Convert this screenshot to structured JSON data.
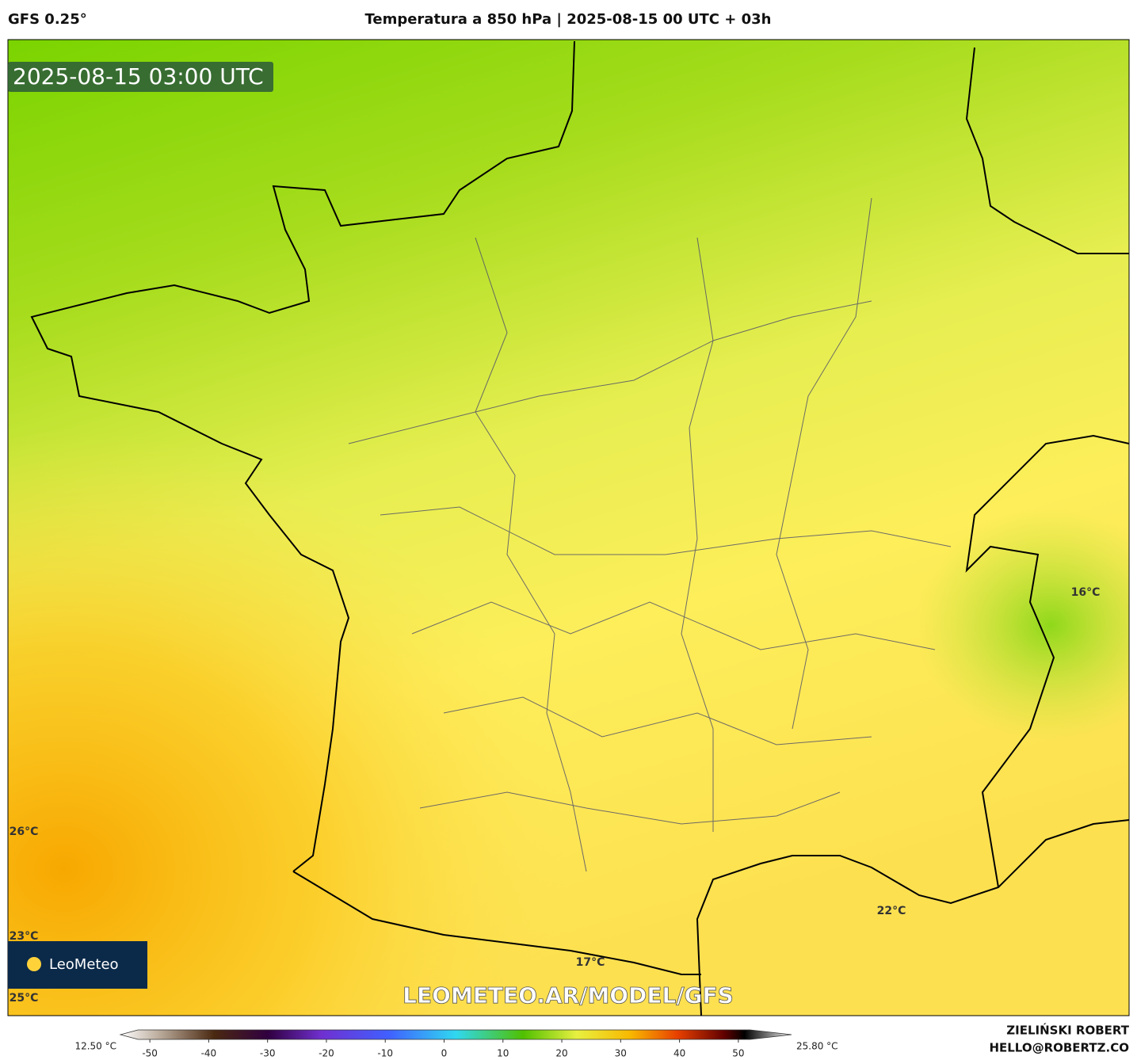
{
  "header": {
    "model": "GFS 0.25°",
    "title": "Temperatura a 850 hPa | 2025-08-15 00 UTC + 03h"
  },
  "map": {
    "timestamp": "2025-08-15 03:00 UTC",
    "watermark": "LEOMETEO.AR/MODEL/GFS",
    "logo": "LeoMeteo",
    "labels": [
      "16°C",
      "22°C",
      "26°C",
      "23°C",
      "25°C",
      "17°C"
    ]
  },
  "colorbar": {
    "min_label": "12.50 °C",
    "max_label": "25.80 °C",
    "clim": [
      -55,
      55
    ],
    "ticks": [
      -50,
      -40,
      -30,
      -20,
      -10,
      0,
      10,
      20,
      30,
      40,
      50
    ]
  },
  "footer": {
    "author": "ZIELIŃSKI ROBERT",
    "email": "HELLO@ROBERTZ.CO"
  }
}
